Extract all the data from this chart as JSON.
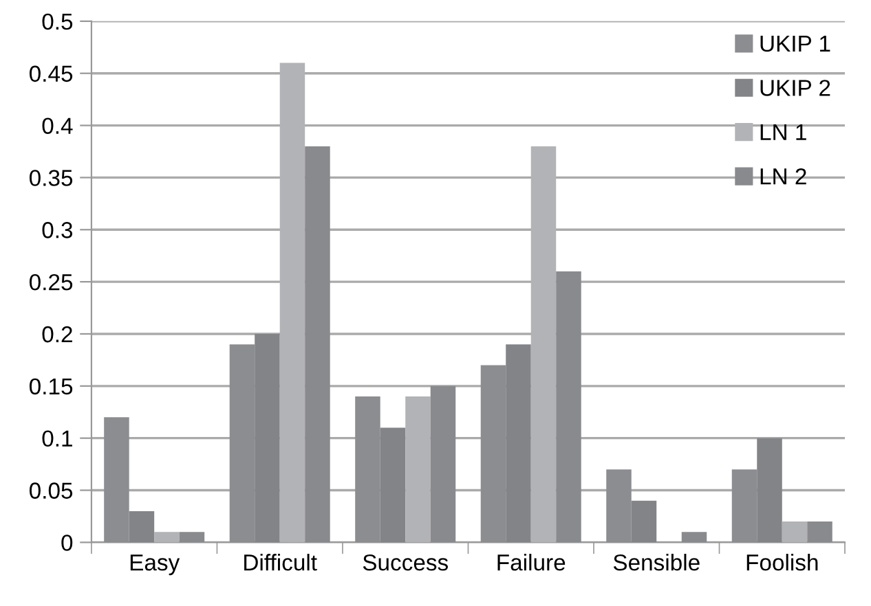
{
  "chart_data": {
    "type": "bar",
    "categories": [
      "Easy",
      "Difficult",
      "Success",
      "Failure",
      "Sensible",
      "Foolish"
    ],
    "series": [
      {
        "name": "UKIP 1",
        "color": "#8c8d91",
        "values": [
          0.12,
          0.19,
          0.14,
          0.17,
          0.07,
          0.07
        ]
      },
      {
        "name": "UKIP 2",
        "color": "#838488",
        "values": [
          0.03,
          0.2,
          0.11,
          0.19,
          0.04,
          0.1
        ]
      },
      {
        "name": "LN 1",
        "color": "#b2b3b6",
        "values": [
          0.01,
          0.46,
          0.14,
          0.38,
          0,
          0.02
        ]
      },
      {
        "name": "LN 2",
        "color": "#898a8e",
        "values": [
          0.01,
          0.38,
          0.15,
          0.26,
          0.01,
          0.02
        ]
      }
    ],
    "ylim": [
      0,
      0.5
    ],
    "yticks": [
      0,
      0.05,
      0.1,
      0.15,
      0.2,
      0.25,
      0.3,
      0.35,
      0.4,
      0.45,
      0.5
    ],
    "grid": "y",
    "legend": "top right"
  }
}
